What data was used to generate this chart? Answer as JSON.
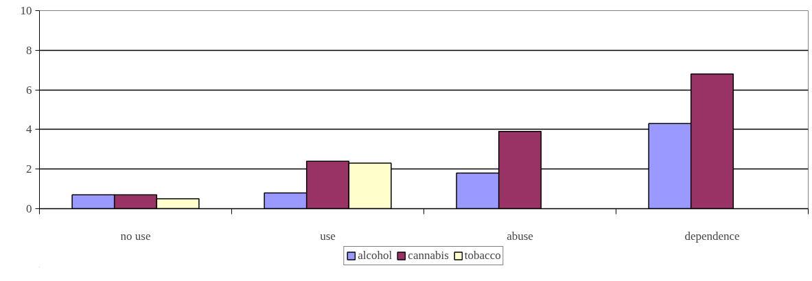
{
  "chart_data": {
    "type": "bar",
    "categories": [
      "no use",
      "use",
      "abuse",
      "dependence"
    ],
    "series": [
      {
        "name": "alcohol",
        "color": "#9999ff",
        "values": [
          0.7,
          0.8,
          1.8,
          4.3
        ]
      },
      {
        "name": "cannabis",
        "color": "#993366",
        "values": [
          0.7,
          2.4,
          3.9,
          6.8
        ]
      },
      {
        "name": "tobacco",
        "color": "#ffffcc",
        "values": [
          0.5,
          2.3,
          null,
          null
        ]
      }
    ],
    "ylim": [
      0,
      10
    ],
    "yticks": [
      0,
      2,
      4,
      6,
      8,
      10
    ],
    "grid": "y",
    "legend": "bottom"
  }
}
